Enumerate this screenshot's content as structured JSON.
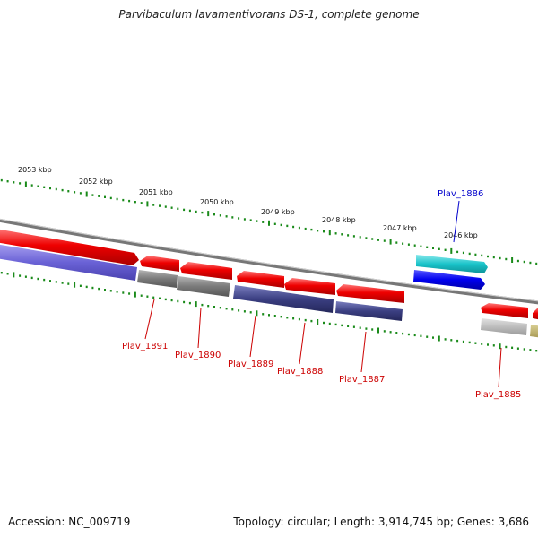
{
  "title": "Parvibaculum lavamentivorans DS-1, complete genome",
  "footer": {
    "accession": "Accession: NC_009719",
    "summary": "Topology: circular; Length: 3,914,745 bp; Genes: 3,686"
  },
  "colors": {
    "forward_gene": "#ee0000",
    "reverse_gene_purple": "#3b3f82",
    "reverse_gene_lavender": "#6a62d6",
    "pseudo_grey": "#7a7a7a",
    "cyan_gene": "#19c3c9",
    "blue_gene": "#0000ee",
    "tick_green": "#1a8a1a",
    "label_red": "#cc0000",
    "label_blue": "#0000cc"
  },
  "scale_labels": [
    "2053 kbp",
    "2052 kbp",
    "2051 kbp",
    "2050 kbp",
    "2049 kbp",
    "2048 kbp",
    "2047 kbp",
    "2046 kbp"
  ],
  "gene_labels": [
    {
      "id": "g1891",
      "text": "Plav_1891",
      "color": "label_red"
    },
    {
      "id": "g1890",
      "text": "Plav_1890",
      "color": "label_red"
    },
    {
      "id": "g1889",
      "text": "Plav_1889",
      "color": "label_red"
    },
    {
      "id": "g1888",
      "text": "Plav_1888",
      "color": "label_red"
    },
    {
      "id": "g1887",
      "text": "Plav_1887",
      "color": "label_red"
    },
    {
      "id": "g1886",
      "text": "Plav_1886",
      "color": "label_blue"
    },
    {
      "id": "g1885",
      "text": "Plav_1885",
      "color": "label_red"
    }
  ]
}
